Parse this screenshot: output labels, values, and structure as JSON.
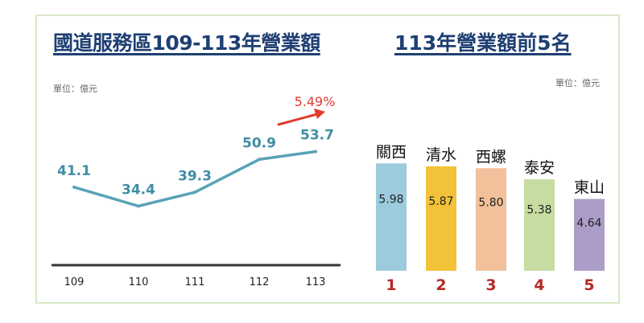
{
  "chart_data": [
    {
      "type": "line",
      "title": "國道服務區109-113年營業額",
      "unit_label": "單位：億元",
      "x": [
        "109",
        "110",
        "111",
        "112",
        "113"
      ],
      "values": [
        41.1,
        34.4,
        39.3,
        50.9,
        53.7
      ],
      "annotation": "5.49%",
      "ylim": [
        0,
        60
      ],
      "colors": {
        "line": "#5aa2b8",
        "axis": "#333333",
        "annotation": "#e23a2e"
      }
    },
    {
      "type": "bar",
      "title": "113年營業額前5名",
      "unit_label": "單位：億元",
      "categories": [
        "關西",
        "清水",
        "西螺",
        "泰安",
        "東山"
      ],
      "values": [
        5.98,
        5.87,
        5.8,
        5.38,
        4.64
      ],
      "value_labels": [
        "5.98",
        "5.87",
        "5.80",
        "5.38",
        "4.64"
      ],
      "ranks": [
        "1",
        "2",
        "3",
        "4",
        "5"
      ],
      "colors": [
        "#9ccbde",
        "#f2c33a",
        "#f2c09a",
        "#c7dca0",
        "#ab9dc7"
      ],
      "rank_color": "#b52a24"
    }
  ]
}
